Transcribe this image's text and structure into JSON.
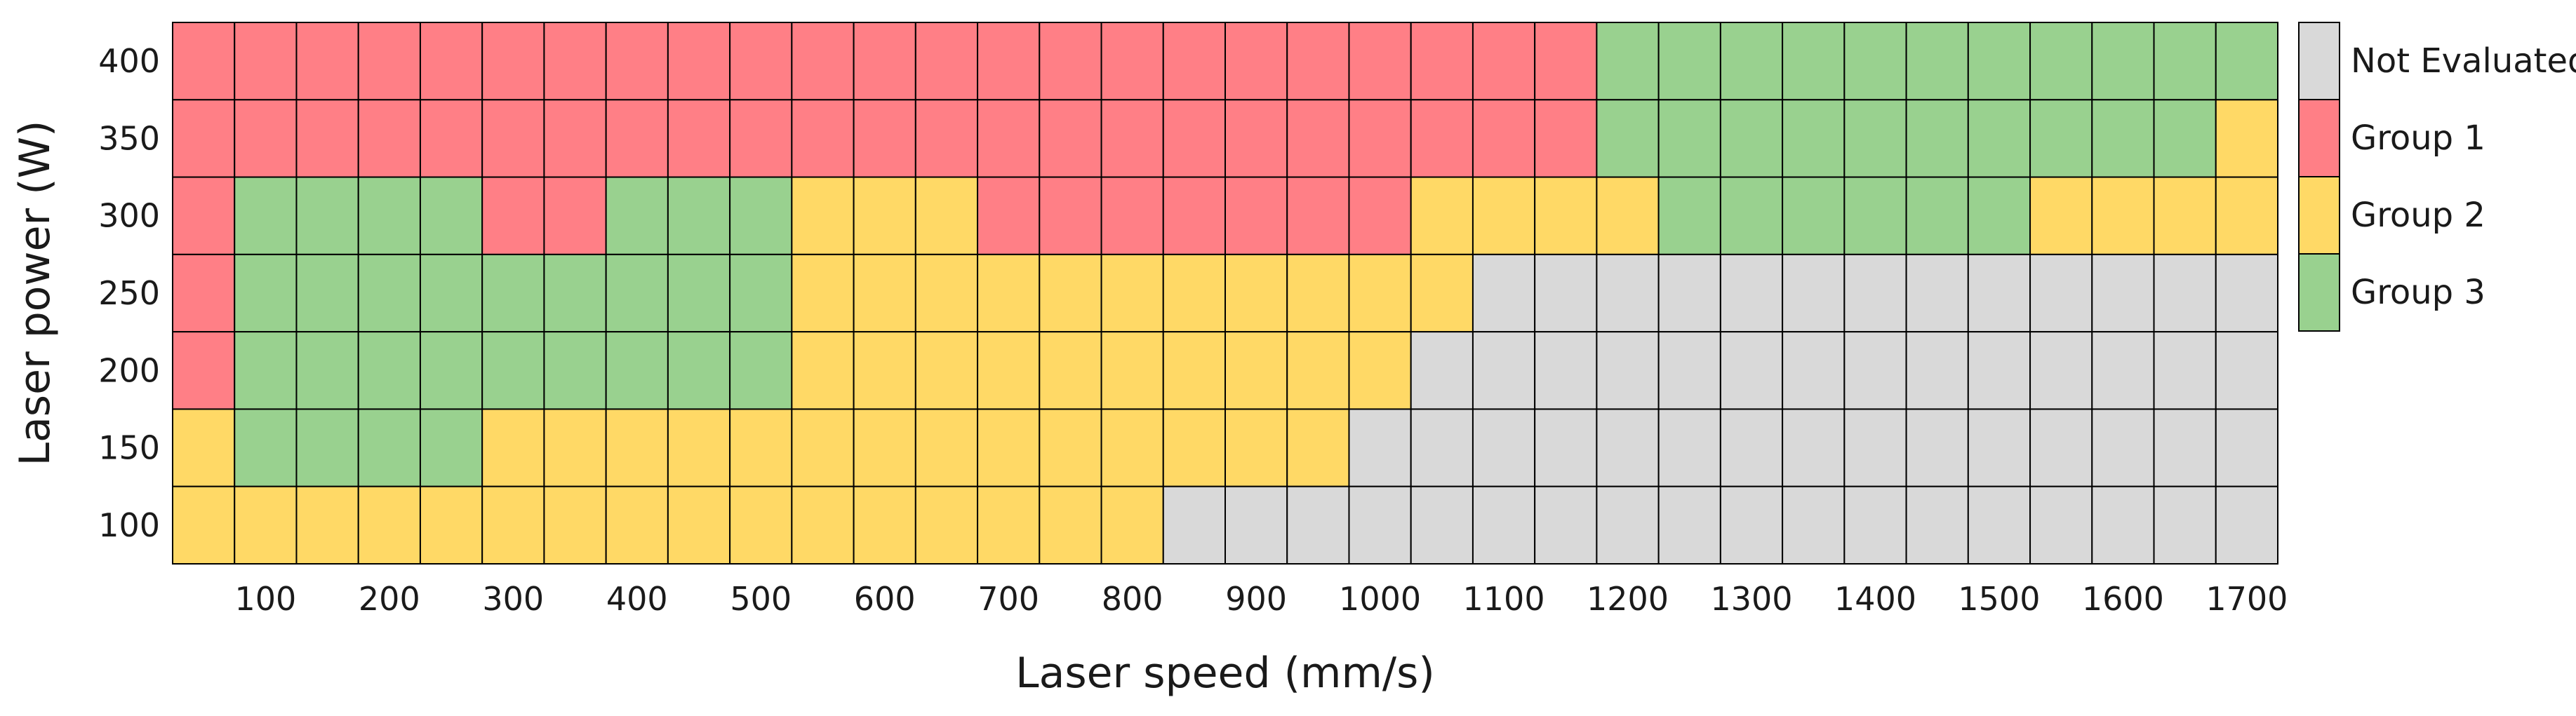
{
  "chart_data": {
    "type": "heatmap",
    "title": "",
    "xlabel": "Laser speed (mm/s)",
    "ylabel": "Laser power (W)",
    "x": [
      50,
      100,
      150,
      200,
      250,
      300,
      350,
      400,
      450,
      500,
      550,
      600,
      650,
      700,
      750,
      800,
      850,
      900,
      950,
      1000,
      1050,
      1100,
      1150,
      1200,
      1250,
      1300,
      1350,
      1400,
      1450,
      1500,
      1550,
      1600,
      1650,
      1700
    ],
    "x_tick_labels": [
      "100",
      "200",
      "300",
      "400",
      "500",
      "600",
      "700",
      "800",
      "900",
      "1000",
      "1100",
      "1200",
      "1300",
      "1400",
      "1500",
      "1600",
      "1700"
    ],
    "y": [
      400,
      350,
      300,
      250,
      200,
      150,
      100
    ],
    "y_tick_labels": [
      "400",
      "350",
      "300",
      "250",
      "200",
      "150",
      "100"
    ],
    "categories": [
      {
        "code": "N",
        "name": "Not Evaluated",
        "color": "#D9D9D9"
      },
      {
        "code": "1",
        "name": "Group 1",
        "color": "#FF7F86"
      },
      {
        "code": "2",
        "name": "Group 2",
        "color": "#FFD966"
      },
      {
        "code": "3",
        "name": "Group 3",
        "color": "#99D18F"
      }
    ],
    "grid_rows": [
      "1111111111111111111111133333333333",
      "1111111111111111111111133333333332",
      "1333311333222111111122223333332222",
      "133333333322222222222NNNNNNNNNNNNN",
      "13333333332222222222NNNNNNNNNNNNNN",
      "2333322222222222222NNNNNNNNNNNNNNN",
      "2222222222222222NNNNNNNNNNNNNNNNNN"
    ],
    "legend_position": "right",
    "grid": true
  }
}
